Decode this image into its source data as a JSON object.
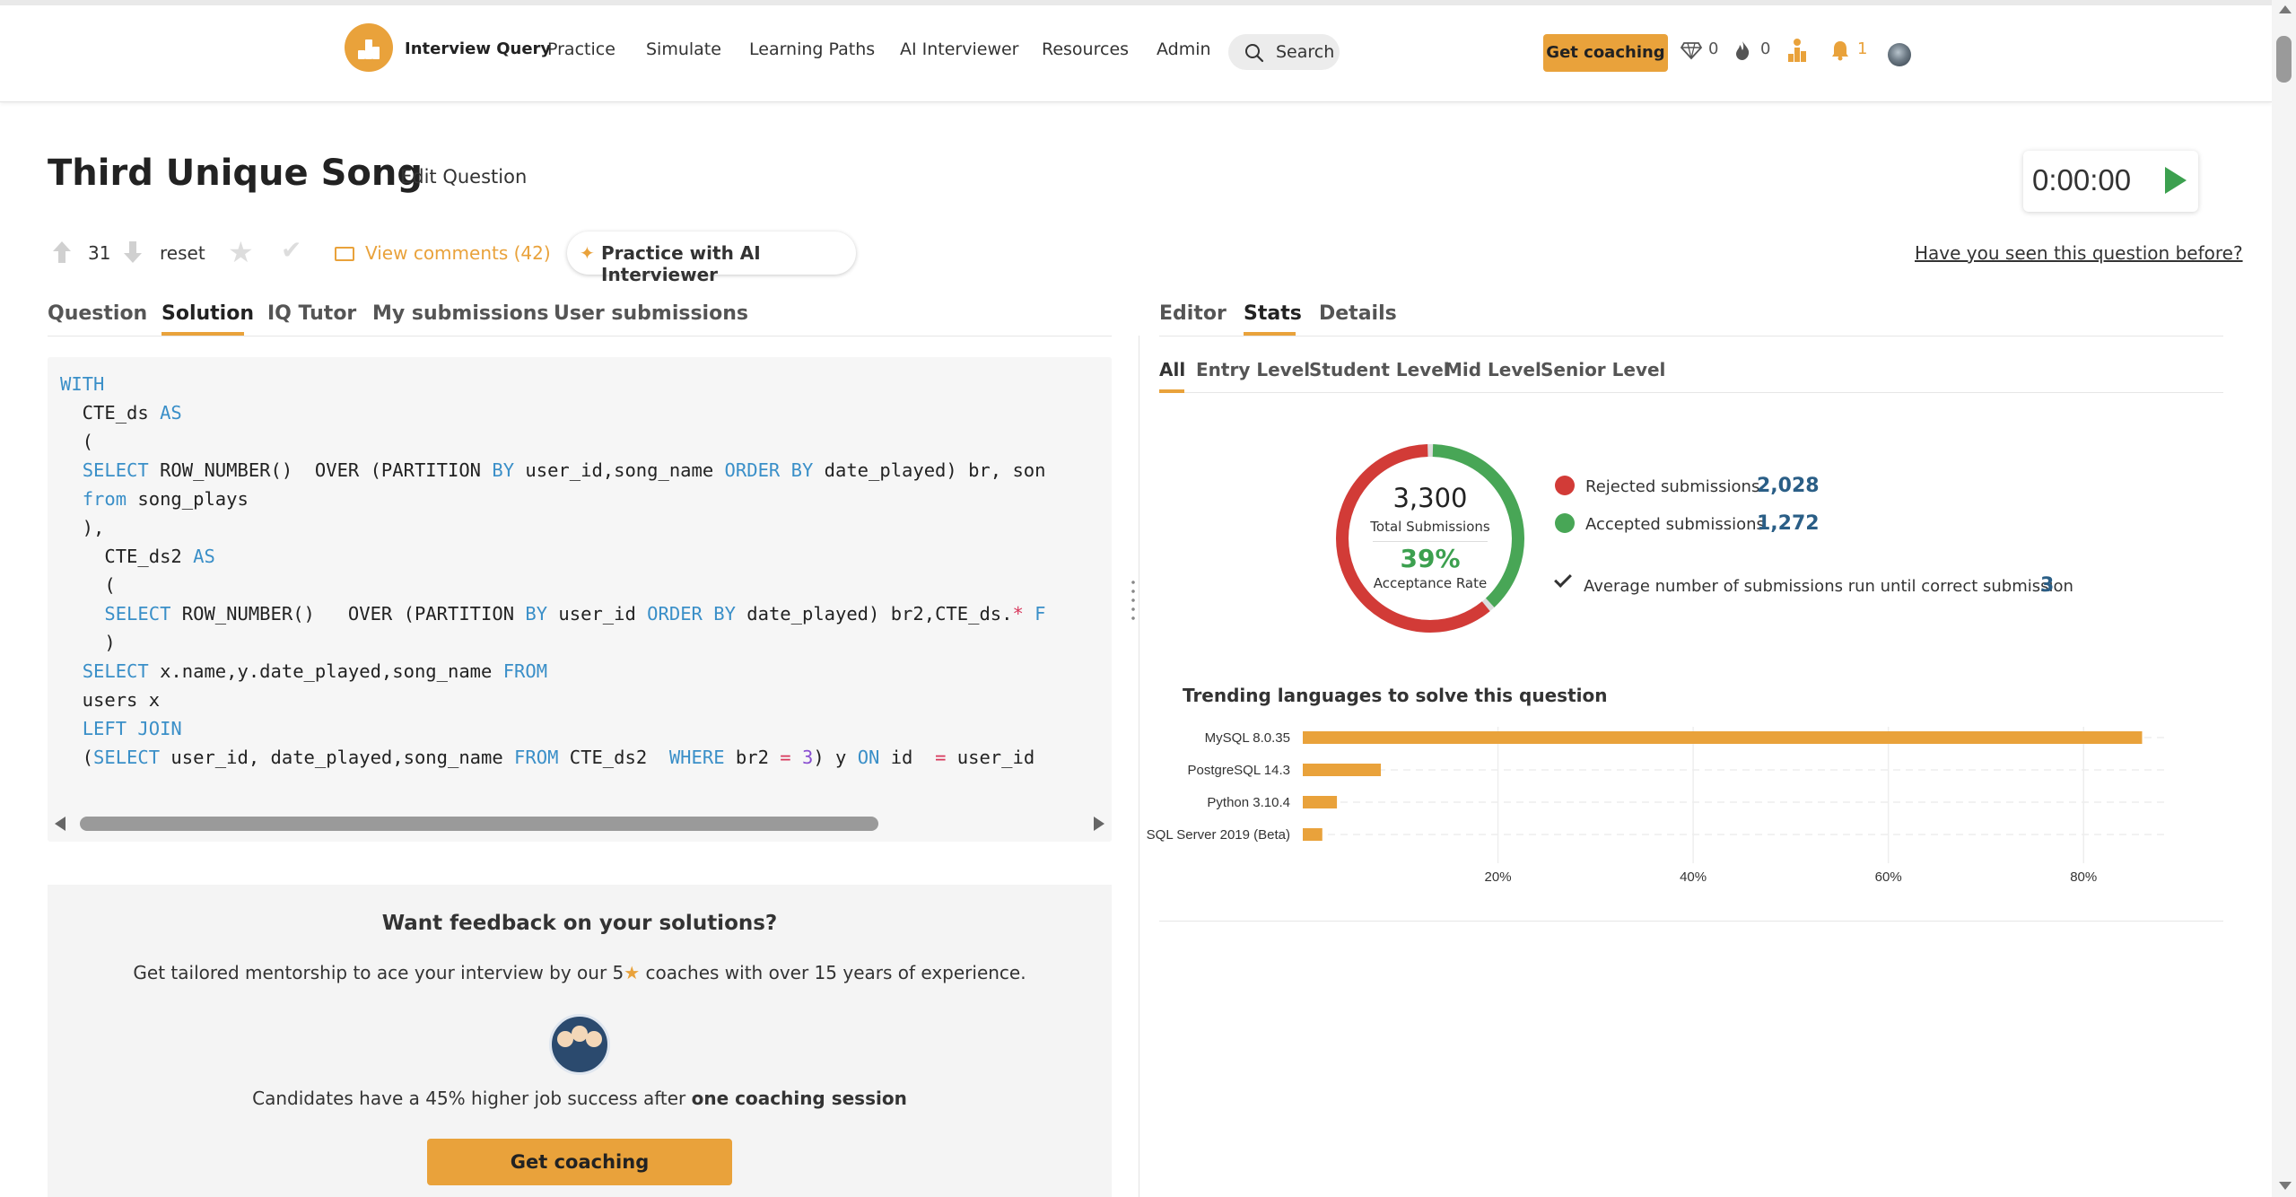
{
  "nav": {
    "brand": "Interview Query",
    "items": [
      "Practice",
      "Simulate",
      "Learning Paths",
      "AI Interviewer",
      "Resources",
      "Admin"
    ],
    "search_label": "Search",
    "coaching_label": "Get coaching",
    "gems": "0",
    "streak": "0",
    "notifications": "1",
    "accent": "#e9a23b"
  },
  "header": {
    "title": "Third Unique Song",
    "edit_label": "Edit Question",
    "timer": "0:00:00",
    "votes": "31",
    "reset_label": "reset",
    "comments_label": "View comments (42)",
    "ai_label": "Practice with AI Interviewer",
    "seen_label": "Have you seen this question before?"
  },
  "left_tabs": [
    "Question",
    "Solution",
    "IQ Tutor",
    "My submissions",
    "User submissions"
  ],
  "right_tabs": [
    "Editor",
    "Stats",
    "Details"
  ],
  "code_lines": [
    [
      [
        "kw",
        "WITH"
      ]
    ],
    [
      [
        "t",
        "  CTE_ds "
      ],
      [
        "kw",
        "AS"
      ]
    ],
    [
      [
        "t",
        "  ("
      ]
    ],
    [
      [
        "t",
        "  "
      ],
      [
        "kw",
        "SELECT"
      ],
      [
        "t",
        " ROW_NUMBER()  OVER (PARTITION "
      ],
      [
        "kw",
        "BY"
      ],
      [
        "t",
        " user_id,song_name "
      ],
      [
        "kw",
        "ORDER BY"
      ],
      [
        "t",
        " date_played) br, son"
      ]
    ],
    [
      [
        "t",
        "  "
      ],
      [
        "kw",
        "from"
      ],
      [
        "t",
        " song_plays"
      ]
    ],
    [
      [
        "t",
        "  ),"
      ]
    ],
    [
      [
        "t",
        "    CTE_ds2 "
      ],
      [
        "kw",
        "AS"
      ]
    ],
    [
      [
        "t",
        "    ("
      ]
    ],
    [
      [
        "t",
        "    "
      ],
      [
        "kw",
        "SELECT"
      ],
      [
        "t",
        " ROW_NUMBER()   OVER (PARTITION "
      ],
      [
        "kw",
        "BY"
      ],
      [
        "t",
        " user_id "
      ],
      [
        "kw",
        "ORDER BY"
      ],
      [
        "t",
        " date_played) br2,CTE_ds."
      ],
      [
        "op",
        "*"
      ],
      [
        "kw",
        " F"
      ]
    ],
    [
      [
        "t",
        "    )"
      ]
    ],
    [
      [
        "t",
        "  "
      ],
      [
        "kw",
        "SELECT"
      ],
      [
        "t",
        " x.name,y.date_played,song_name "
      ],
      [
        "kw",
        "FROM"
      ]
    ],
    [
      [
        "t",
        "  users x"
      ]
    ],
    [
      [
        "t",
        "  "
      ],
      [
        "kw",
        "LEFT JOIN"
      ]
    ],
    [
      [
        "t",
        "  ("
      ],
      [
        "kw",
        "SELECT"
      ],
      [
        "t",
        " user_id, date_played,song_name "
      ],
      [
        "kw",
        "FROM"
      ],
      [
        "t",
        " CTE_ds2  "
      ],
      [
        "kw",
        "WHERE"
      ],
      [
        "t",
        " br2 "
      ],
      [
        "op",
        "="
      ],
      [
        "t",
        " "
      ],
      [
        "num",
        "3"
      ],
      [
        "t",
        ") y "
      ],
      [
        "kw",
        "ON"
      ],
      [
        "t",
        " id  "
      ],
      [
        "op",
        "="
      ],
      [
        "t",
        " user_id"
      ]
    ]
  ],
  "feedback": {
    "title": "Want feedback on your solutions?",
    "sub_before": "Get tailored mentorship to ace your interview by our 5",
    "sub_after": " coaches with over 15 years of experience.",
    "cand_text": "Candidates have a 45% higher job success after ",
    "cand_bold": "one coaching session",
    "button": "Get coaching"
  },
  "stats": {
    "levels": [
      "All",
      "Entry Level",
      "Student Level",
      "Mid Level",
      "Senior Level"
    ],
    "total": "3,300",
    "total_label": "Total Submissions",
    "rate": "39%",
    "rate_label": "Acceptance Rate",
    "rejected_label": "Rejected submissions",
    "rejected_value": "2,028",
    "accepted_label": "Accepted submissions",
    "accepted_value": "1,272",
    "avg_label": "Average number of submissions run until correct submission",
    "avg_value": "3",
    "rejected_color": "#d23b37",
    "accepted_color": "#48a656",
    "trend_title": "Trending languages to solve this question"
  },
  "chart_data": {
    "type": "bar",
    "orientation": "horizontal",
    "categories": [
      "MySQL 8.0.35",
      "PostgreSQL 14.3",
      "Python 3.10.4",
      "SQL Server 2019 (Beta)"
    ],
    "values": [
      86,
      8,
      3.5,
      2
    ],
    "xticks": [
      "20%",
      "40%",
      "60%",
      "80%"
    ],
    "xlim": [
      0,
      86
    ],
    "color": "#e9a23b"
  }
}
